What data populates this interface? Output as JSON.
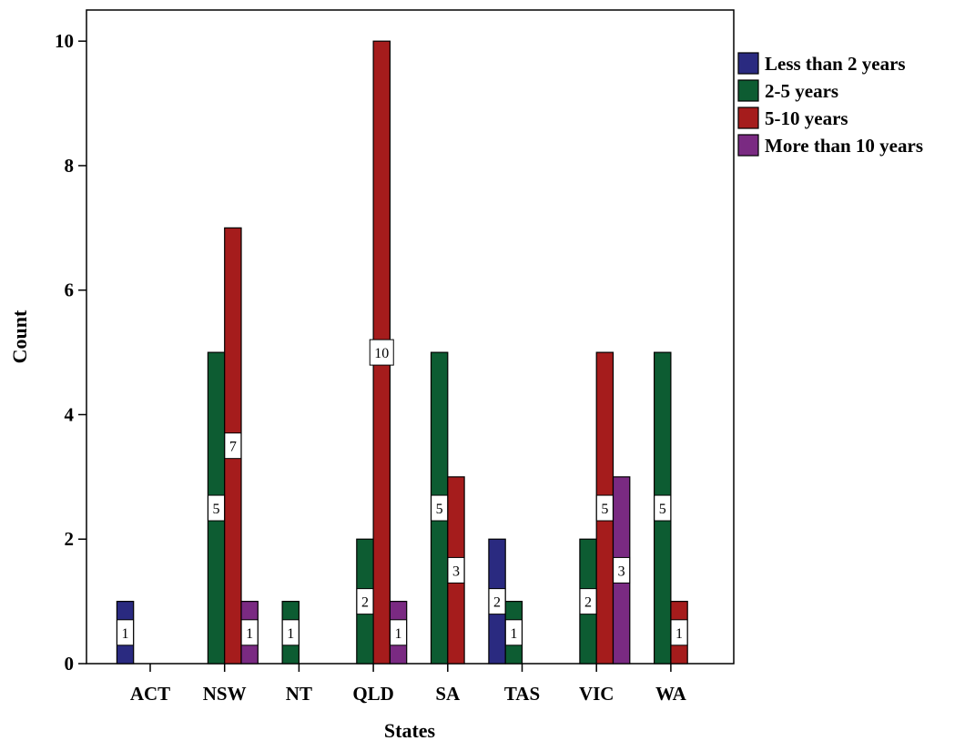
{
  "chart_data": {
    "type": "bar",
    "xlabel": "States",
    "ylabel": "Count",
    "ylim": [
      0,
      10.5
    ],
    "yticks": [
      0,
      2,
      4,
      6,
      8,
      10
    ],
    "grid": false,
    "legend_position": "top-right",
    "categories": [
      "ACT",
      "NSW",
      "NT",
      "QLD",
      "SA",
      "TAS",
      "VIC",
      "WA"
    ],
    "series": [
      {
        "name": "Less than 2 years",
        "color": "#2a2a80",
        "values": [
          1,
          null,
          null,
          null,
          null,
          2,
          null,
          null
        ]
      },
      {
        "name": "2-5 years",
        "color": "#0d5c32",
        "values": [
          null,
          5,
          1,
          2,
          5,
          1,
          2,
          5
        ]
      },
      {
        "name": "5-10 years",
        "color": "#a51c1c",
        "values": [
          null,
          7,
          null,
          10,
          3,
          null,
          5,
          1
        ]
      },
      {
        "name": "More than 10 years",
        "color": "#7a2a82",
        "values": [
          null,
          1,
          null,
          1,
          null,
          null,
          3,
          null
        ]
      }
    ]
  }
}
